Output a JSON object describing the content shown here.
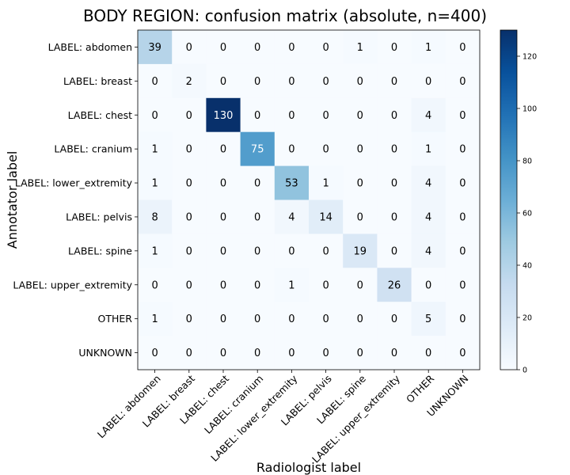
{
  "chart_data": {
    "type": "heatmap",
    "title": "BODY REGION: confusion matrix (absolute, n=400)",
    "xlabel": "Radiologist label",
    "ylabel": "Annotator label",
    "row_labels": [
      "LABEL: abdomen",
      "LABEL: breast",
      "LABEL: chest",
      "LABEL: cranium",
      "LABEL: lower_extremity",
      "LABEL: pelvis",
      "LABEL: spine",
      "LABEL: upper_extremity",
      "OTHER",
      "UNKNOWN"
    ],
    "col_labels": [
      "LABEL: abdomen",
      "LABEL: breast",
      "LABEL: chest",
      "LABEL: cranium",
      "LABEL: lower_extremity",
      "LABEL: pelvis",
      "LABEL: spine",
      "LABEL: upper_extremity",
      "OTHER",
      "UNKNOWN"
    ],
    "values": [
      [
        39,
        0,
        0,
        0,
        0,
        0,
        1,
        0,
        1,
        0
      ],
      [
        0,
        2,
        0,
        0,
        0,
        0,
        0,
        0,
        0,
        0
      ],
      [
        0,
        0,
        130,
        0,
        0,
        0,
        0,
        0,
        4,
        0
      ],
      [
        1,
        0,
        0,
        75,
        0,
        0,
        0,
        0,
        1,
        0
      ],
      [
        1,
        0,
        0,
        0,
        53,
        1,
        0,
        0,
        4,
        0
      ],
      [
        8,
        0,
        0,
        0,
        4,
        14,
        0,
        0,
        4,
        0
      ],
      [
        1,
        0,
        0,
        0,
        0,
        0,
        19,
        0,
        4,
        0
      ],
      [
        0,
        0,
        0,
        0,
        1,
        0,
        0,
        26,
        0,
        0
      ],
      [
        1,
        0,
        0,
        0,
        0,
        0,
        0,
        0,
        5,
        0
      ],
      [
        0,
        0,
        0,
        0,
        0,
        0,
        0,
        0,
        0,
        0
      ]
    ],
    "vmin": 0,
    "vmax": 130,
    "colormap": "Blues",
    "colorbar_ticks": [
      0,
      20,
      40,
      60,
      80,
      100,
      120
    ]
  }
}
